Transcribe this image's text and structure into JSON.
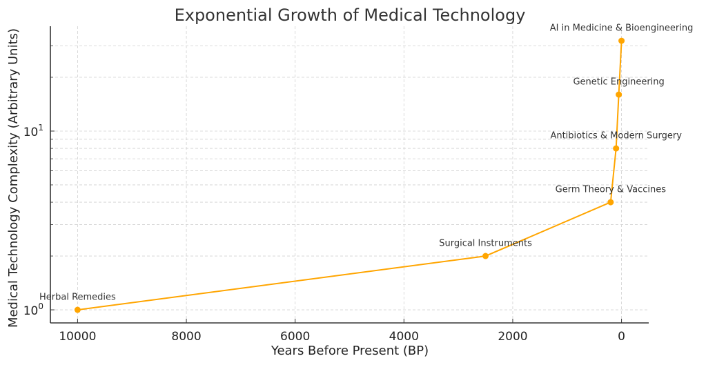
{
  "chart_data": {
    "type": "line",
    "title": "Exponential Growth of Medical Technology",
    "xlabel": "Years Before Present (BP)",
    "ylabel": "Medical Technology Complexity (Arbitrary Units)",
    "xscale": "linear",
    "yscale": "log",
    "x_inverted": true,
    "xlim": [
      10500,
      -500
    ],
    "ylim": [
      0.845,
      38.6
    ],
    "grid": true,
    "xticks": [
      10000,
      8000,
      6000,
      4000,
      2000,
      0
    ],
    "xtick_labels": [
      "10000",
      "8000",
      "6000",
      "4000",
      "2000",
      "0"
    ],
    "yticks": [
      1,
      10
    ],
    "ytick_labels": [
      {
        "base": "10",
        "exp": "0"
      },
      {
        "base": "10",
        "exp": "1"
      }
    ],
    "y_minor_ticks": [
      2,
      3,
      4,
      5,
      6,
      7,
      8,
      9,
      20,
      30
    ],
    "series": [
      {
        "name": "Medical Technology Complexity",
        "color": "#FFA500",
        "x": [
          10000,
          2500,
          200,
          100,
          50,
          0
        ],
        "values": [
          1,
          2,
          4,
          8,
          16,
          32
        ]
      }
    ],
    "annotations": [
      {
        "text": "Herbal Remedies",
        "x": 10000,
        "y": 1
      },
      {
        "text": "Surgical Instruments",
        "x": 2500,
        "y": 2
      },
      {
        "text": "Germ Theory & Vaccines",
        "x": 200,
        "y": 4
      },
      {
        "text": "Antibiotics & Modern Surgery",
        "x": 100,
        "y": 8
      },
      {
        "text": "Genetic Engineering",
        "x": 50,
        "y": 16
      },
      {
        "text": "AI in Medicine & Bioengineering",
        "x": 0,
        "y": 32
      }
    ]
  }
}
